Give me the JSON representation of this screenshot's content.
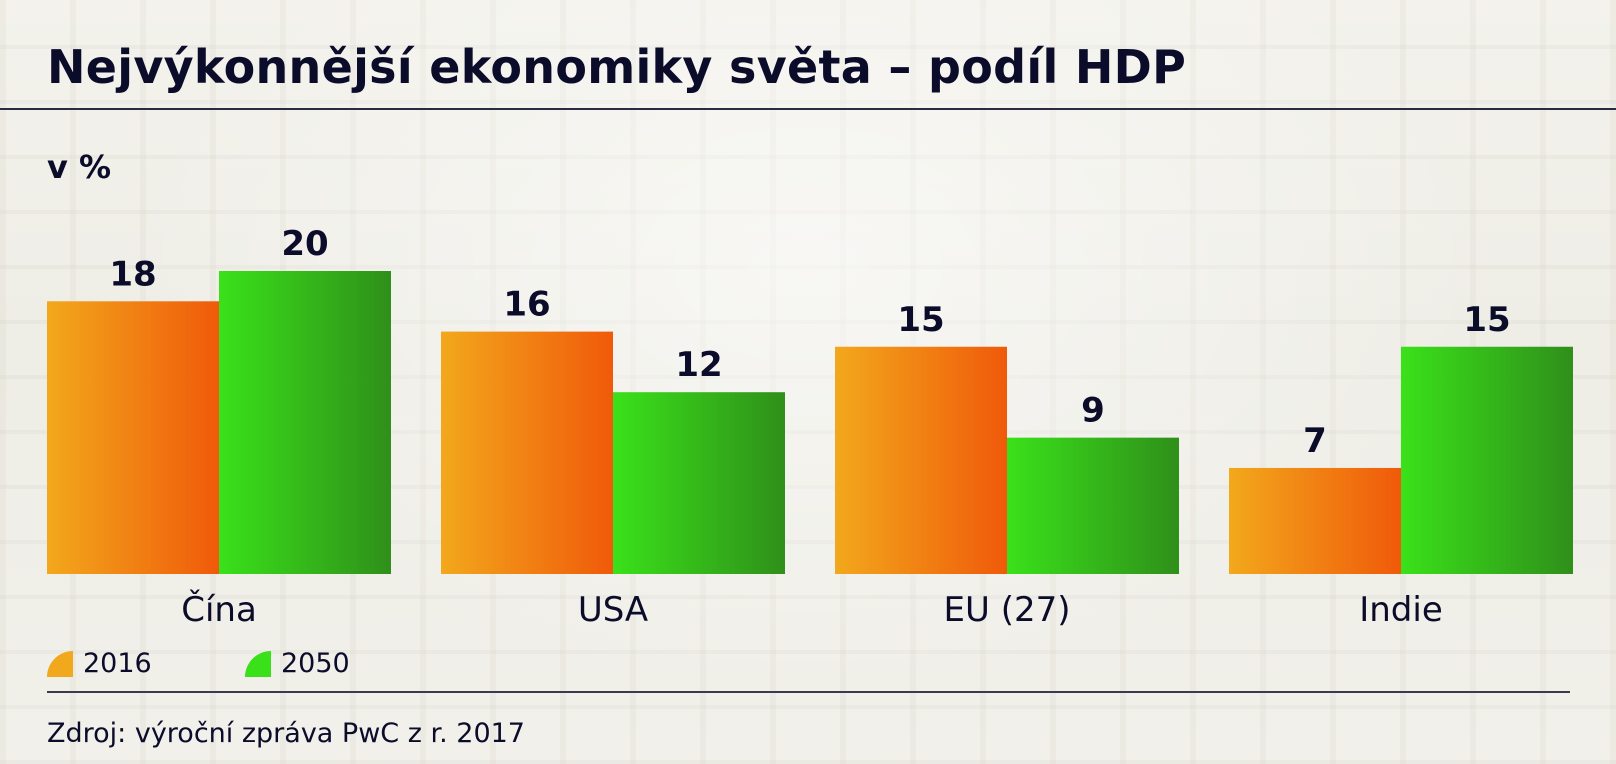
{
  "title": "Nejvýkonnější ekonomiky světa – podíl HDP",
  "unit_label": "v %",
  "source": "Zdroj: výroční zpráva PwC z r. 2017",
  "colors": {
    "series_2016": [
      "#f2a81c",
      "#f05a0a"
    ],
    "series_2050": [
      "#3ae11a",
      "#2f8f1a"
    ],
    "text": "#0b0b2a"
  },
  "chart_data": {
    "type": "bar",
    "title": "Nejvýkonnější ekonomiky světa – podíl HDP",
    "ylabel": "v %",
    "xlabel": "",
    "categories": [
      "Čína",
      "USA",
      "EU (27)",
      "Indie"
    ],
    "series": [
      {
        "name": "2016",
        "values": [
          18,
          16,
          15,
          7
        ]
      },
      {
        "name": "2050",
        "values": [
          20,
          12,
          9,
          15
        ]
      }
    ],
    "ylim": [
      0,
      20
    ],
    "grid": false,
    "legend": "bottom-left",
    "data_labels": true
  }
}
